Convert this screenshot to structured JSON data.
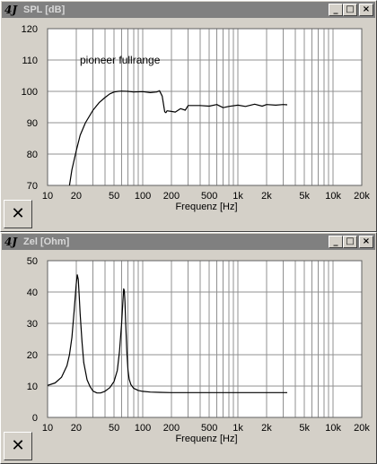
{
  "windows": [
    {
      "app_icon": "4J",
      "title": "SPL [dB]",
      "buttons": {
        "minimize": "_",
        "maximize": "□",
        "close": "×"
      },
      "tool_icon": "cross-icon",
      "tool_glyph": "✕"
    },
    {
      "app_icon": "4J",
      "title": "Zel [Ohm]",
      "buttons": {
        "minimize": "_",
        "maximize": "□",
        "close": "×"
      },
      "tool_icon": "cross-icon",
      "tool_glyph": "✕"
    }
  ],
  "chart_data": [
    {
      "type": "line",
      "xscale": "log",
      "xlim": [
        10,
        20000
      ],
      "ylim": [
        70,
        120
      ],
      "xlabel": "Frequenz [Hz]",
      "ylabel": "",
      "annotation": "pioneer fullrange",
      "x_ticks": [
        10,
        20,
        50,
        100,
        200,
        500,
        1000,
        2000,
        5000,
        10000,
        20000
      ],
      "x_tick_labels": [
        "10",
        "20",
        "50",
        "100",
        "200",
        "500",
        "1k",
        "2k",
        "5k",
        "10k",
        "20k"
      ],
      "y_ticks": [
        70,
        80,
        90,
        100,
        110,
        120
      ],
      "y_tick_labels": [
        "70",
        "80",
        "90",
        "100",
        "110",
        "120"
      ],
      "grid": true,
      "series": [
        {
          "x": [
            17,
            18,
            20,
            22,
            25,
            30,
            35,
            40,
            45,
            50,
            55,
            60,
            70,
            80,
            100,
            120,
            140,
            150,
            160,
            165,
            170,
            175,
            180,
            200,
            220,
            250,
            280,
            300,
            400,
            500,
            600,
            700,
            800,
            1000,
            1200,
            1500,
            1800,
            2000,
            2500,
            3000,
            3300
          ],
          "y": [
            70,
            75,
            81,
            86,
            90,
            94,
            96.5,
            98,
            99.2,
            99.8,
            100,
            100.1,
            100,
            99.8,
            99.9,
            99.6,
            99.8,
            100.2,
            98.5,
            96,
            93.5,
            93.2,
            93.8,
            93.6,
            93.4,
            94.5,
            94.0,
            95.5,
            95.5,
            95.3,
            95.8,
            94.8,
            95.2,
            95.6,
            95.2,
            95.9,
            95.3,
            95.8,
            95.6,
            95.8,
            95.7
          ]
        }
      ]
    },
    {
      "type": "line",
      "xscale": "log",
      "xlim": [
        10,
        20000
      ],
      "ylim": [
        0,
        50
      ],
      "xlabel": "Frequenz [Hz]",
      "ylabel": "",
      "x_ticks": [
        10,
        20,
        50,
        100,
        200,
        500,
        1000,
        2000,
        5000,
        10000,
        20000
      ],
      "x_tick_labels": [
        "10",
        "20",
        "50",
        "100",
        "200",
        "500",
        "1k",
        "2k",
        "5k",
        "10k",
        "20k"
      ],
      "y_ticks": [
        0,
        10,
        20,
        30,
        40,
        50
      ],
      "y_tick_labels": [
        "0",
        "10",
        "20",
        "30",
        "40",
        "50"
      ],
      "grid": true,
      "series": [
        {
          "x": [
            10,
            12,
            14,
            16,
            17,
            18,
            19,
            20,
            20.5,
            21,
            21.5,
            22,
            23,
            24,
            26,
            28,
            30,
            33,
            36,
            40,
            45,
            50,
            54,
            57,
            60,
            62,
            63,
            64,
            65,
            66,
            68,
            70,
            72,
            75,
            80,
            90,
            100,
            120,
            150,
            200,
            300,
            500,
            1000,
            2000,
            3300
          ],
          "y": [
            10.2,
            11.0,
            12.8,
            16.5,
            20,
            25.5,
            34,
            42.5,
            45.5,
            44,
            39,
            33,
            24,
            17.5,
            12,
            9.8,
            8.4,
            7.8,
            7.8,
            8.3,
            9.5,
            11.5,
            15,
            21,
            30,
            37.5,
            41,
            40.5,
            37,
            31,
            21,
            15,
            12.2,
            10.5,
            9.3,
            8.6,
            8.3,
            8.1,
            8.0,
            7.9,
            7.9,
            7.9,
            7.9,
            7.9,
            7.9
          ]
        }
      ]
    }
  ]
}
